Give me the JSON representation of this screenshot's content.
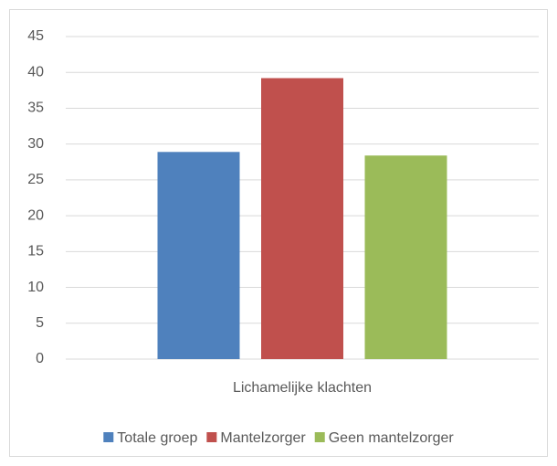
{
  "chart_data": {
    "type": "bar",
    "categories": [
      "Lichamelijke klachten"
    ],
    "series": [
      {
        "name": "Totale groep",
        "color": "#4f81bd",
        "values": [
          28.9
        ]
      },
      {
        "name": "Mantelzorger",
        "color": "#c0504d",
        "values": [
          39.2
        ]
      },
      {
        "name": "Geen mantelzorger",
        "color": "#9bbb59",
        "values": [
          28.4
        ]
      }
    ],
    "ylim": [
      0,
      45
    ],
    "yticks": [
      0,
      5,
      10,
      15,
      20,
      25,
      30,
      35,
      40,
      45
    ],
    "grid": true,
    "legend": "bottom"
  }
}
